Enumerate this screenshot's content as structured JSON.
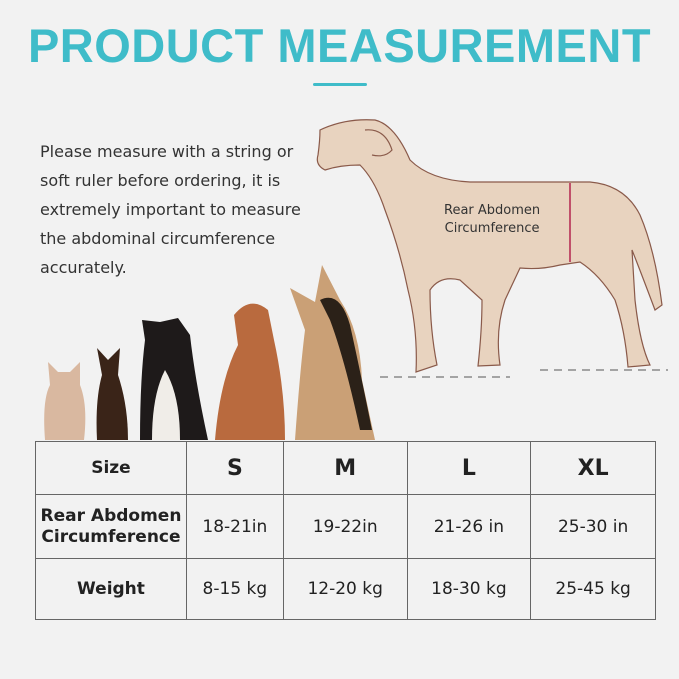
{
  "title": "PRODUCT MEASUREMENT",
  "intro": "Please measure with a string or soft ruler before ordering, it is extremely important to measure the abdominal circumference accurately.",
  "diagram": {
    "label_line1": "Rear Abdomen",
    "label_line2": "Circumference"
  },
  "colors": {
    "accent": "#3fbcc9",
    "measure_line": "#c0506a",
    "dog_fill": "#e8d3bf"
  },
  "table": {
    "header": {
      "label": "Size",
      "sizes": [
        "S",
        "M",
        "L",
        "XL"
      ]
    },
    "rows": [
      {
        "label_line1": "Rear Abdomen",
        "label_line2": "Circumference",
        "values": [
          "18-21in",
          "19-22in",
          "21-26 in",
          "25-30 in"
        ]
      },
      {
        "label": "Weight",
        "values": [
          "8-15 kg",
          "12-20 kg",
          "18-30 kg",
          "25-45 kg"
        ]
      }
    ]
  }
}
